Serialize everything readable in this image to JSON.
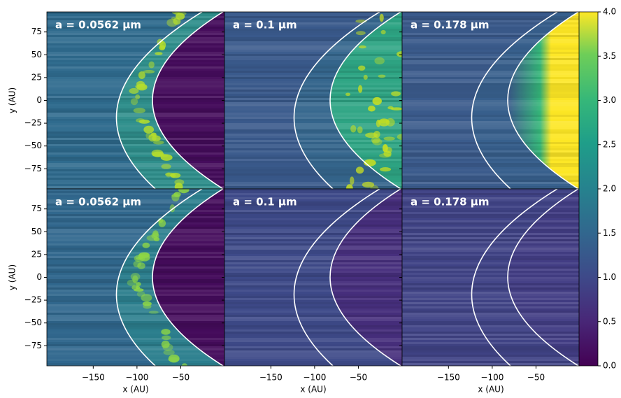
{
  "chart_data": {
    "type": "heatmap",
    "panels": [
      {
        "title": "a = 0.0562 μm"
      },
      {
        "title": "a = 0.1 μm"
      },
      {
        "title": "a = 0.178 μm"
      },
      {
        "title": "a = 0.0562 μm"
      },
      {
        "title": "a = 0.1 μm"
      },
      {
        "title": "a = 0.178 μm"
      }
    ],
    "xlabel": "x (AU)",
    "ylabel": "y (AU)",
    "xlim": [
      -203,
      0
    ],
    "ylim": [
      -97,
      97
    ],
    "xticks": [
      {
        "value": -150,
        "label": "−150"
      },
      {
        "value": -100,
        "label": "−100"
      },
      {
        "value": -50,
        "label": "−50"
      }
    ],
    "yticks": [
      {
        "value": -75,
        "label": "−75"
      },
      {
        "value": -50,
        "label": "−50"
      },
      {
        "value": -25,
        "label": "−25"
      },
      0,
      25,
      50,
      75
    ],
    "colorbar": {
      "lim": [
        0,
        4
      ],
      "colormap": "viridis",
      "ticks": [
        {
          "value": 0,
          "label": "0.0"
        },
        {
          "value": 0.5,
          "label": "0.5"
        },
        {
          "value": 1,
          "label": "1.0"
        },
        {
          "value": 1.5,
          "label": "1.5"
        },
        {
          "value": 2,
          "label": "2.0"
        },
        {
          "value": 2.5,
          "label": "2.5"
        },
        {
          "value": 3,
          "label": "3.0"
        },
        {
          "value": 3.5,
          "label": "3.5"
        },
        {
          "value": 4,
          "label": "4.0"
        }
      ]
    }
  }
}
